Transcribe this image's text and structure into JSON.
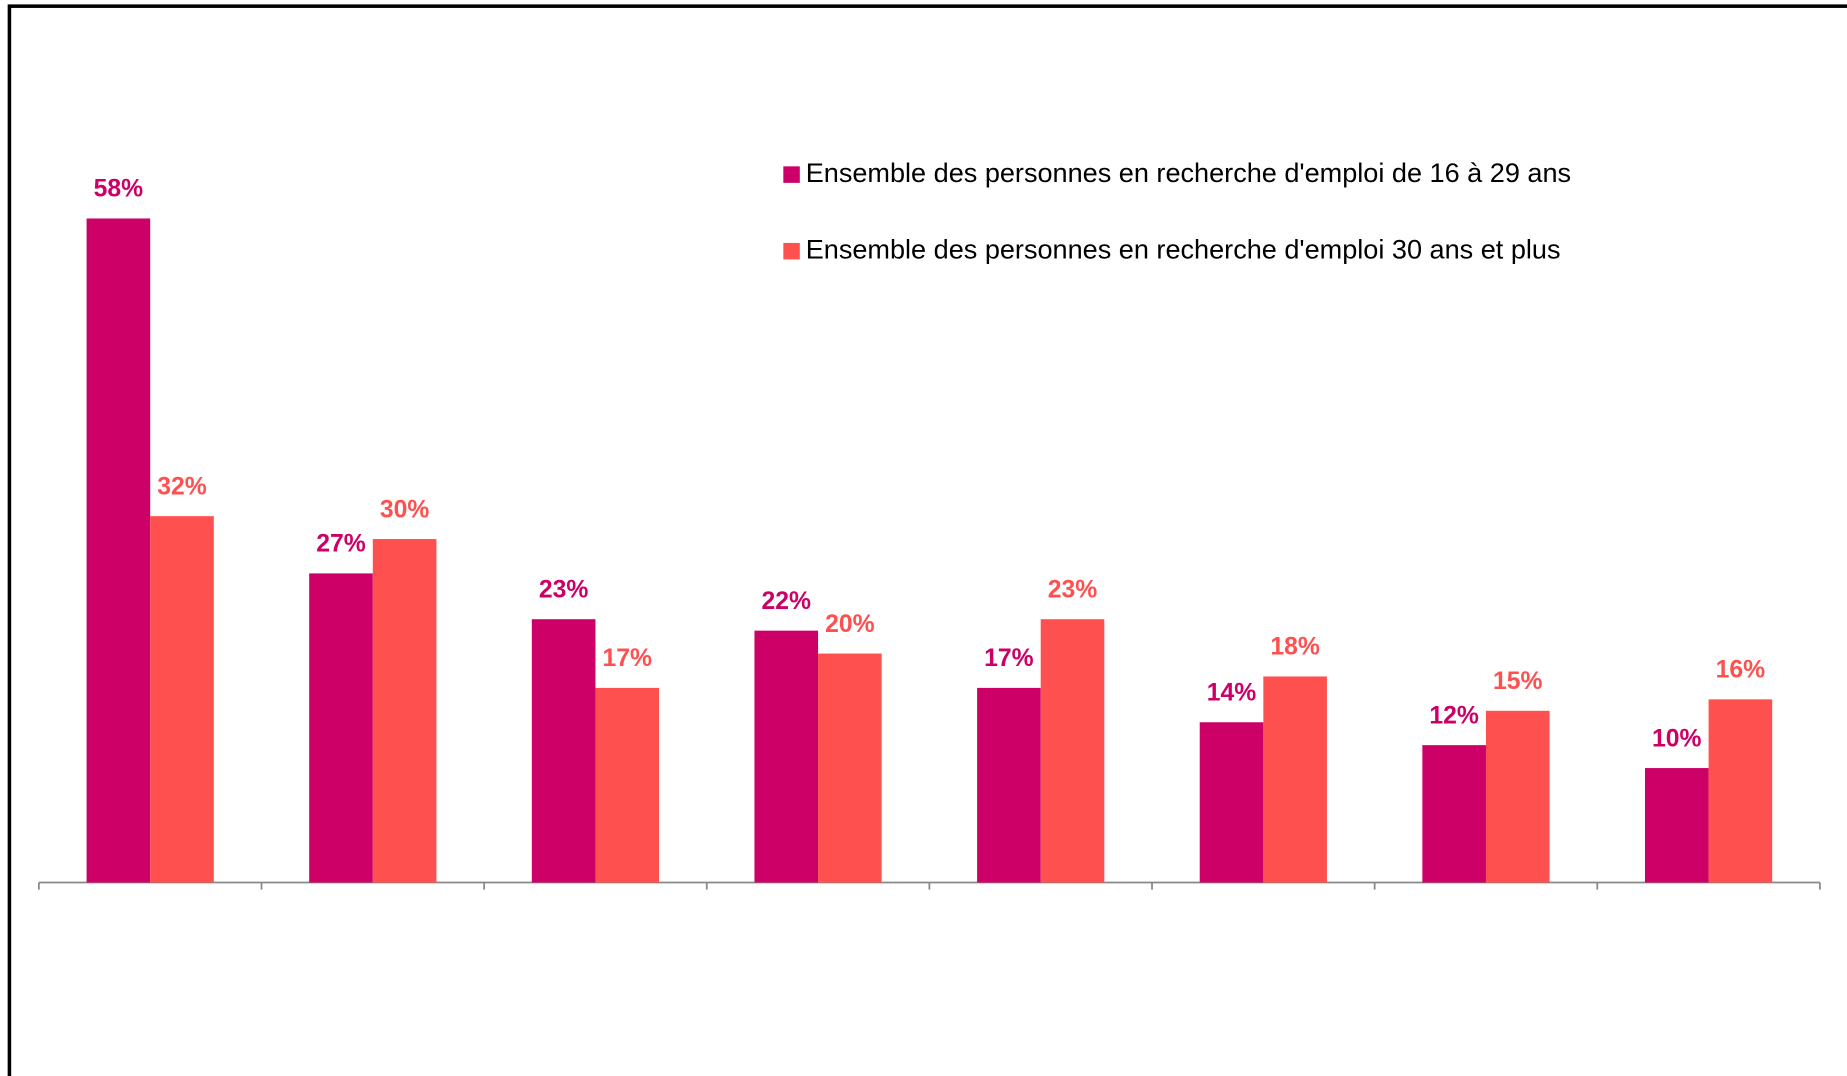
{
  "chart_data": {
    "type": "bar",
    "categories": [
      null,
      null,
      null,
      null,
      null,
      null,
      null,
      null
    ],
    "series": [
      {
        "name": "Ensemble des personnes en recherche d'emploi de 16 à 29 ans",
        "color": "#cc0066",
        "values": [
          58,
          27,
          23,
          22,
          17,
          14,
          12,
          10
        ],
        "value_labels": [
          "58%",
          "27%",
          "23%",
          "22%",
          "17%",
          "14%",
          "12%",
          "10%"
        ]
      },
      {
        "name": "Ensemble des personnes en recherche d'emploi 30 ans et plus",
        "color": "#ff5050",
        "values": [
          32,
          30,
          17,
          20,
          23,
          18,
          15,
          16
        ],
        "value_labels": [
          "32%",
          "30%",
          "17%",
          "20%",
          "23%",
          "18%",
          "15%",
          "16%"
        ]
      }
    ]
  }
}
